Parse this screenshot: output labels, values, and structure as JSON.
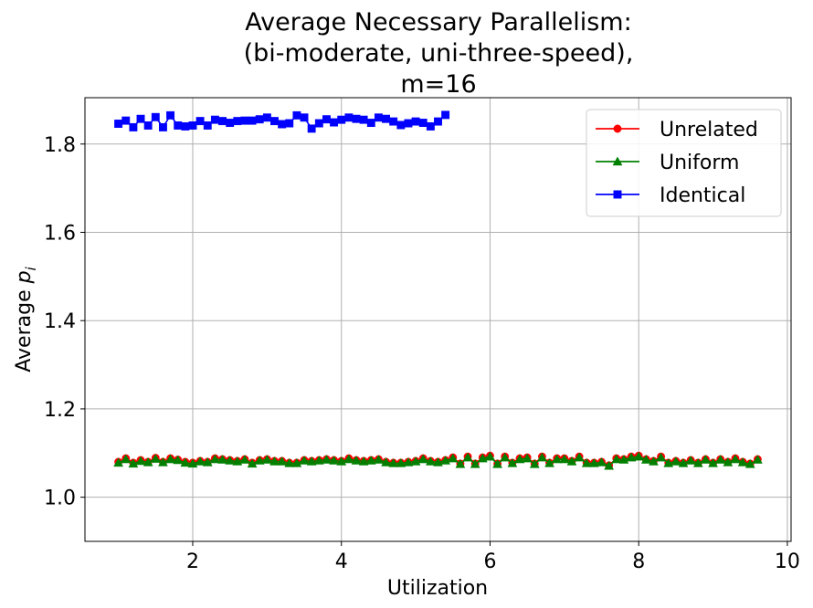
{
  "chart_data": {
    "type": "line",
    "title_lines": [
      "Average Necessary Parallelism:",
      "(bi-moderate, uni-three-speed),",
      "m=16"
    ],
    "xlabel": "Utilization",
    "ylabel_main": "Average ",
    "ylabel_symbol": "p",
    "ylabel_sub": "i",
    "xlim": [
      0.55,
      10.05
    ],
    "ylim": [
      0.9,
      1.905
    ],
    "xticks": [
      2,
      4,
      6,
      8,
      10
    ],
    "xtick_labels": [
      "2",
      "4",
      "6",
      "8",
      "10"
    ],
    "yticks": [
      1.0,
      1.2,
      1.4,
      1.6,
      1.8
    ],
    "ytick_labels": [
      "1.0",
      "1.2",
      "1.4",
      "1.6",
      "1.8"
    ],
    "grid": true,
    "legend_placement": "top-right",
    "series": [
      {
        "name": "Unrelated",
        "color": "#ff0000",
        "marker": "circle",
        "x": [
          1.0,
          1.1,
          1.2,
          1.3,
          1.4,
          1.5,
          1.6,
          1.7,
          1.8,
          1.9,
          2.0,
          2.1,
          2.2,
          2.3,
          2.4,
          2.5,
          2.6,
          2.7,
          2.8,
          2.9,
          3.0,
          3.1,
          3.2,
          3.3,
          3.4,
          3.5,
          3.6,
          3.7,
          3.8,
          3.9,
          4.0,
          4.1,
          4.2,
          4.3,
          4.4,
          4.5,
          4.6,
          4.7,
          4.8,
          4.9,
          5.0,
          5.1,
          5.2,
          5.3,
          5.4,
          5.5,
          5.6,
          5.7,
          5.8,
          5.9,
          6.0,
          6.1,
          6.2,
          6.3,
          6.4,
          6.5,
          6.6,
          6.7,
          6.8,
          6.9,
          7.0,
          7.1,
          7.2,
          7.3,
          7.4,
          7.5,
          7.6,
          7.7,
          7.8,
          7.9,
          8.0,
          8.1,
          8.2,
          8.3,
          8.4,
          8.5,
          8.6,
          8.7,
          8.8,
          8.9,
          9.0,
          9.1,
          9.2,
          9.3,
          9.4,
          9.5,
          9.6
        ],
        "values": [
          1.08,
          1.088,
          1.078,
          1.084,
          1.08,
          1.089,
          1.08,
          1.088,
          1.085,
          1.08,
          1.078,
          1.082,
          1.08,
          1.088,
          1.086,
          1.084,
          1.082,
          1.086,
          1.078,
          1.084,
          1.086,
          1.082,
          1.082,
          1.078,
          1.078,
          1.084,
          1.082,
          1.084,
          1.086,
          1.084,
          1.082,
          1.088,
          1.084,
          1.082,
          1.084,
          1.086,
          1.08,
          1.078,
          1.078,
          1.08,
          1.082,
          1.088,
          1.082,
          1.08,
          1.084,
          1.09,
          1.076,
          1.092,
          1.076,
          1.09,
          1.094,
          1.076,
          1.092,
          1.078,
          1.088,
          1.09,
          1.076,
          1.092,
          1.078,
          1.088,
          1.088,
          1.082,
          1.092,
          1.078,
          1.078,
          1.08,
          1.072,
          1.088,
          1.086,
          1.092,
          1.094,
          1.086,
          1.082,
          1.092,
          1.078,
          1.082,
          1.078,
          1.084,
          1.078,
          1.086,
          1.078,
          1.086,
          1.08,
          1.088,
          1.08,
          1.076,
          1.086
        ]
      },
      {
        "name": "Uniform",
        "color": "#008000",
        "marker": "triangle",
        "x": [
          1.0,
          1.1,
          1.2,
          1.3,
          1.4,
          1.5,
          1.6,
          1.7,
          1.8,
          1.9,
          2.0,
          2.1,
          2.2,
          2.3,
          2.4,
          2.5,
          2.6,
          2.7,
          2.8,
          2.9,
          3.0,
          3.1,
          3.2,
          3.3,
          3.4,
          3.5,
          3.6,
          3.7,
          3.8,
          3.9,
          4.0,
          4.1,
          4.2,
          4.3,
          4.4,
          4.5,
          4.6,
          4.7,
          4.8,
          4.9,
          5.0,
          5.1,
          5.2,
          5.3,
          5.4,
          5.5,
          5.6,
          5.7,
          5.8,
          5.9,
          6.0,
          6.1,
          6.2,
          6.3,
          6.4,
          6.5,
          6.6,
          6.7,
          6.8,
          6.9,
          7.0,
          7.1,
          7.2,
          7.3,
          7.4,
          7.5,
          7.6,
          7.7,
          7.8,
          7.9,
          8.0,
          8.1,
          8.2,
          8.3,
          8.4,
          8.5,
          8.6,
          8.7,
          8.8,
          8.9,
          9.0,
          9.1,
          9.2,
          9.3,
          9.4,
          9.5,
          9.6
        ],
        "values": [
          1.078,
          1.086,
          1.076,
          1.082,
          1.079,
          1.087,
          1.079,
          1.086,
          1.084,
          1.078,
          1.076,
          1.081,
          1.079,
          1.086,
          1.085,
          1.083,
          1.081,
          1.085,
          1.076,
          1.083,
          1.085,
          1.081,
          1.081,
          1.077,
          1.077,
          1.083,
          1.081,
          1.083,
          1.085,
          1.083,
          1.081,
          1.086,
          1.083,
          1.081,
          1.083,
          1.085,
          1.079,
          1.077,
          1.077,
          1.079,
          1.081,
          1.086,
          1.081,
          1.079,
          1.083,
          1.088,
          1.075,
          1.09,
          1.075,
          1.088,
          1.092,
          1.075,
          1.09,
          1.077,
          1.086,
          1.088,
          1.075,
          1.09,
          1.077,
          1.086,
          1.086,
          1.081,
          1.09,
          1.077,
          1.077,
          1.079,
          1.071,
          1.086,
          1.085,
          1.09,
          1.092,
          1.085,
          1.081,
          1.09,
          1.077,
          1.081,
          1.077,
          1.083,
          1.077,
          1.085,
          1.077,
          1.085,
          1.079,
          1.086,
          1.079,
          1.075,
          1.085
        ]
      },
      {
        "name": "Identical",
        "color": "#0000ff",
        "marker": "square",
        "x": [
          1.0,
          1.1,
          1.2,
          1.3,
          1.4,
          1.5,
          1.6,
          1.7,
          1.8,
          1.9,
          2.0,
          2.1,
          2.2,
          2.3,
          2.4,
          2.5,
          2.6,
          2.7,
          2.8,
          2.9,
          3.0,
          3.1,
          3.2,
          3.3,
          3.4,
          3.5,
          3.6,
          3.7,
          3.8,
          3.9,
          4.0,
          4.1,
          4.2,
          4.3,
          4.4,
          4.5,
          4.6,
          4.7,
          4.8,
          4.9,
          5.0,
          5.1,
          5.2,
          5.3,
          5.4
        ],
        "values": [
          1.846,
          1.853,
          1.838,
          1.857,
          1.842,
          1.861,
          1.838,
          1.865,
          1.842,
          1.84,
          1.842,
          1.852,
          1.842,
          1.855,
          1.852,
          1.848,
          1.852,
          1.853,
          1.853,
          1.856,
          1.86,
          1.852,
          1.845,
          1.847,
          1.865,
          1.86,
          1.835,
          1.847,
          1.856,
          1.849,
          1.855,
          1.86,
          1.857,
          1.855,
          1.848,
          1.86,
          1.857,
          1.851,
          1.843,
          1.847,
          1.851,
          1.848,
          1.84,
          1.851,
          1.866
        ]
      }
    ]
  }
}
